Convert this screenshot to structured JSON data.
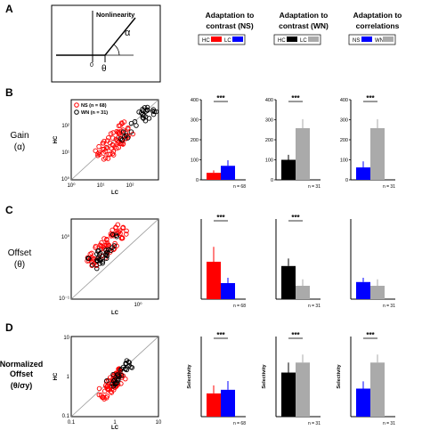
{
  "panel_letters": [
    "A",
    "B",
    "C",
    "D"
  ],
  "schematic": {
    "label": "Nonlinearity",
    "alpha": "α",
    "zero": "0",
    "theta": "θ"
  },
  "column_titles": [
    {
      "line1": "Adaptation to",
      "line2": "contrast (NS)",
      "legend": [
        {
          "label": "HC",
          "color": "#ff0000"
        },
        {
          "label": "LC",
          "color": "#0000ff"
        }
      ]
    },
    {
      "line1": "Adaptation to",
      "line2": "contrast (WN)",
      "legend": [
        {
          "label": "HC",
          "color": "#000000"
        },
        {
          "label": "LC",
          "color": "#aaaaaa"
        }
      ]
    },
    {
      "line1": "Adaptation to",
      "line2": "correlations",
      "legend": [
        {
          "label": "NS",
          "color": "#0000ff"
        },
        {
          "label": "WN",
          "color": "#aaaaaa"
        }
      ]
    }
  ],
  "row_labels": [
    {
      "lines": [
        "Gain",
        "(α)"
      ]
    },
    {
      "lines": [
        "Offset",
        "(θ)"
      ]
    },
    {
      "lines": [
        "Normalized",
        "Offset",
        "(θ/σy)"
      ]
    }
  ],
  "colors": {
    "HC_NS": "#ff0000",
    "LC_NS": "#0000ff",
    "HC_WN": "#000000",
    "LC_WN": "#aaaaaa",
    "NS": "#0000ff",
    "WN": "#aaaaaa"
  },
  "scatter_legend": [
    "NS (n = 68)",
    "WN (n = 31)"
  ],
  "significance": "***",
  "n_labels": {
    "ns": "n = 68",
    "wn": "n = 31"
  },
  "chart_data": [
    {
      "id": "B-scatter",
      "type": "scatter",
      "xlabel": "LC",
      "ylabel": "HC",
      "scale": "log",
      "xlim": [
        1,
        1000
      ],
      "ylim": [
        1,
        1000
      ],
      "xticks": [
        "10⁰",
        "10¹",
        "10²"
      ],
      "yticks": [
        "10⁰",
        "10¹",
        "10²"
      ],
      "unity_line": true,
      "note": "NS cells (red, n=68) cluster near LC 10-100, HC 10-60; WN cells (black, n=31) LC 40-300, HC 30-200"
    },
    {
      "id": "B-NS",
      "type": "bar",
      "categories": [
        "HC",
        "LC"
      ],
      "values": [
        35,
        70
      ],
      "errors": [
        12,
        28
      ],
      "ylim": [
        0,
        400
      ],
      "yticks": [
        0,
        100,
        200,
        300,
        400
      ],
      "colors": [
        "#ff0000",
        "#0000ff"
      ],
      "significance": "***",
      "n": "n = 68"
    },
    {
      "id": "B-WN",
      "type": "bar",
      "categories": [
        "HC",
        "LC"
      ],
      "values": [
        100,
        258
      ],
      "errors": [
        25,
        45
      ],
      "ylim": [
        0,
        400
      ],
      "yticks": [
        0,
        100,
        200,
        300,
        400
      ],
      "colors": [
        "#000000",
        "#aaaaaa"
      ],
      "significance": "***",
      "n": "n = 31"
    },
    {
      "id": "B-corr",
      "type": "bar",
      "categories": [
        "NS",
        "WN"
      ],
      "values": [
        62,
        258
      ],
      "errors": [
        30,
        45
      ],
      "ylim": [
        0,
        400
      ],
      "yticks": [
        0,
        100,
        200,
        300,
        400
      ],
      "colors": [
        "#0000ff",
        "#aaaaaa"
      ],
      "significance": "***",
      "n": "n = 31"
    },
    {
      "id": "C-scatter",
      "type": "scatter",
      "xlabel": "LC",
      "ylabel": "HC",
      "scale": "log",
      "xlim": [
        0.1,
        2
      ],
      "ylim": [
        0.1,
        2
      ],
      "xticks": [
        "10⁰"
      ],
      "yticks": [
        "10⁻¹",
        "10⁰"
      ],
      "unity_line": true
    },
    {
      "id": "C-NS",
      "type": "bar",
      "categories": [
        "HC",
        "LC"
      ],
      "values": [
        0.7,
        0.3
      ],
      "errors": [
        0.28,
        0.1
      ],
      "ylim": [
        0,
        1.5
      ],
      "colors": [
        "#ff0000",
        "#0000ff"
      ],
      "significance": "***",
      "n": "n = 68"
    },
    {
      "id": "C-WN",
      "type": "bar",
      "categories": [
        "HC",
        "LC"
      ],
      "values": [
        0.62,
        0.25
      ],
      "errors": [
        0.14,
        0.12
      ],
      "ylim": [
        0,
        1.5
      ],
      "colors": [
        "#000000",
        "#aaaaaa"
      ],
      "significance": "***",
      "n": "n = 31"
    },
    {
      "id": "C-corr",
      "type": "bar",
      "categories": [
        "NS",
        "WN"
      ],
      "values": [
        0.32,
        0.25
      ],
      "errors": [
        0.08,
        0.12
      ],
      "ylim": [
        0,
        1.5
      ],
      "colors": [
        "#0000ff",
        "#aaaaaa"
      ],
      "significance": "",
      "n": "n = 31"
    },
    {
      "id": "D-scatter",
      "type": "scatter",
      "xlabel": "LC",
      "ylabel": "HC",
      "scale": "log",
      "xlim": [
        0.1,
        10
      ],
      "ylim": [
        0.1,
        10
      ],
      "xticks": [
        "0.1",
        "1",
        "10"
      ],
      "yticks": [
        "0.1",
        "1",
        "10"
      ],
      "unity_line": true
    },
    {
      "id": "D-NS",
      "type": "bar",
      "categories": [
        "HC",
        "LC"
      ],
      "values": [
        0.58,
        0.67
      ],
      "errors": [
        0.2,
        0.22
      ],
      "ylim": [
        0,
        2
      ],
      "ylabel": "Selectivity",
      "colors": [
        "#ff0000",
        "#0000ff"
      ],
      "significance": "***",
      "n": "n = 68"
    },
    {
      "id": "D-WN",
      "type": "bar",
      "categories": [
        "HC",
        "LC"
      ],
      "values": [
        1.1,
        1.35
      ],
      "errors": [
        0.25,
        0.2
      ],
      "ylim": [
        0,
        2
      ],
      "ylabel": "Selectivity",
      "colors": [
        "#000000",
        "#aaaaaa"
      ],
      "significance": "***",
      "n": "n = 31"
    },
    {
      "id": "D-corr",
      "type": "bar",
      "categories": [
        "NS",
        "WN"
      ],
      "values": [
        0.7,
        1.35
      ],
      "errors": [
        0.18,
        0.2
      ],
      "ylim": [
        0,
        2
      ],
      "ylabel": "Selectivity",
      "colors": [
        "#0000ff",
        "#aaaaaa"
      ],
      "significance": "***",
      "n": "n = 31"
    }
  ]
}
